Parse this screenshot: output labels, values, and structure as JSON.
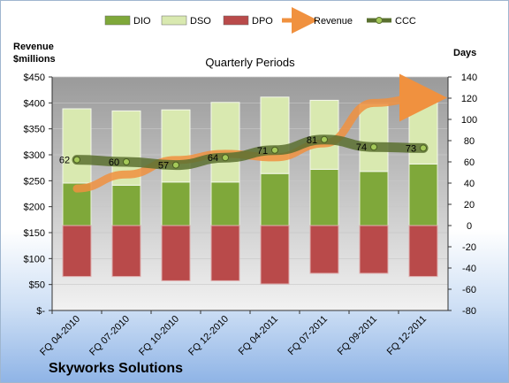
{
  "company": "Skyworks Solutions",
  "colors": {
    "dio": "#7fa83a",
    "dso": "#d9e9b0",
    "dpo": "#b94a4a",
    "revenue": "#f0913f",
    "ccc": "#5a7030",
    "plot_bg_top": "#9a9a9a",
    "plot_bg_bottom": "#f2f2f2"
  },
  "chart_data": {
    "type": "bar",
    "title": "Quarterly Periods",
    "ylabel_left": "Revenue\n$millions",
    "ylabel_right": "Days",
    "left_axis": {
      "range": [
        0,
        450
      ],
      "ticks": [
        0,
        50,
        100,
        150,
        200,
        250,
        300,
        350,
        400,
        450
      ],
      "tick_labels": [
        "$-",
        "$50",
        "$100",
        "$150",
        "$200",
        "$250",
        "$300",
        "$350",
        "$400",
        "$450"
      ]
    },
    "right_axis": {
      "range": [
        -80,
        140
      ],
      "ticks": [
        -80,
        -60,
        -40,
        -20,
        0,
        20,
        40,
        60,
        80,
        100,
        120,
        140
      ],
      "tick_labels": [
        "-80",
        "-60",
        "-40",
        "-20",
        "0",
        "20",
        "40",
        "60",
        "80",
        "100",
        "120",
        "140"
      ]
    },
    "categories": [
      "FQ 04-2010",
      "FQ 07-2010",
      "FQ 10-2010",
      "FQ 12-2010",
      "FQ 04-2011",
      "FQ 07-2011",
      "FQ 09-2011",
      "FQ 12-2011"
    ],
    "legend": [
      "DIO",
      "DSO",
      "DPO",
      "Revenue",
      "CCC"
    ],
    "legend_position": "top",
    "series": [
      {
        "name": "DIO",
        "axis": "right",
        "kind": "stacked-bar",
        "values": [
          40,
          38,
          41,
          41,
          49,
          53,
          51,
          58
        ]
      },
      {
        "name": "DSO",
        "axis": "right",
        "kind": "stacked-bar",
        "values": [
          70,
          70,
          68,
          75,
          72,
          65,
          63,
          60
        ]
      },
      {
        "name": "DPO",
        "axis": "right",
        "kind": "negative-bar",
        "values": [
          -48,
          -48,
          -52,
          -52,
          -55,
          -45,
          -45,
          -48
        ]
      },
      {
        "name": "Revenue",
        "axis": "left",
        "kind": "line",
        "values": [
          235,
          262,
          290,
          302,
          295,
          322,
          400,
          410
        ]
      },
      {
        "name": "CCC",
        "axis": "right",
        "kind": "line",
        "values": [
          62,
          60,
          57,
          64,
          71,
          81,
          74,
          73
        ],
        "data_labels": [
          "62",
          "60",
          "57",
          "64",
          "71",
          "81",
          "74",
          "73"
        ]
      }
    ]
  }
}
